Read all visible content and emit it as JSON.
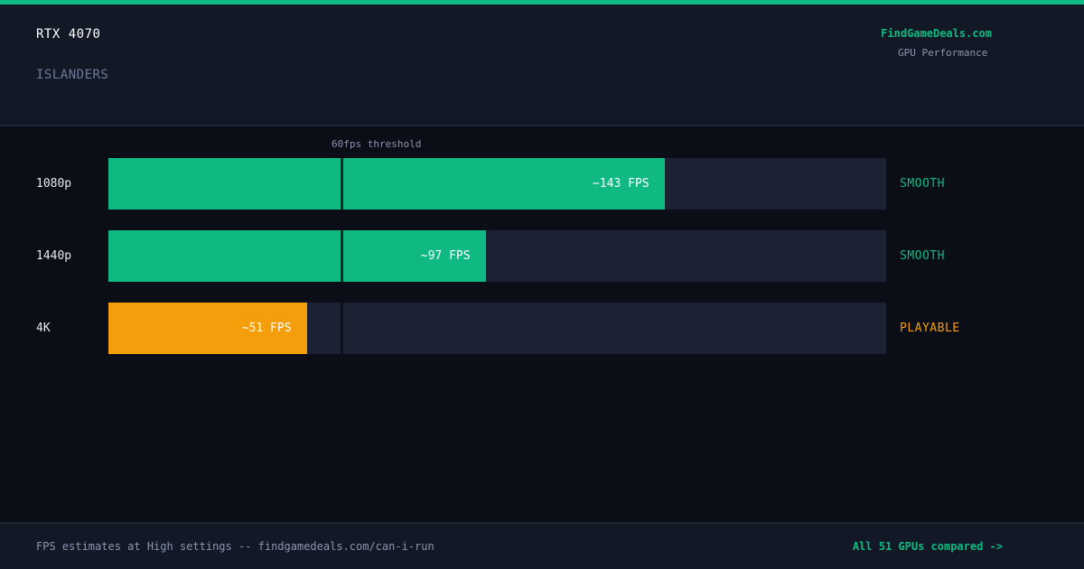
{
  "header": {
    "gpu": "RTX 4070",
    "game": "ISLANDERS",
    "brand": "FindGameDeals.com",
    "brand_subtitle": "GPU Performance"
  },
  "colors": {
    "smooth": "#10b981",
    "playable": "#f59e0b",
    "track": "#1b2233"
  },
  "chart_data": {
    "type": "bar",
    "orientation": "horizontal",
    "categories": [
      "1080p",
      "1440p",
      "4K"
    ],
    "values": [
      143,
      97,
      51
    ],
    "value_labels": [
      "~143 FPS",
      "~97 FPS",
      "~51 FPS"
    ],
    "statuses": [
      "SMOOTH",
      "SMOOTH",
      "PLAYABLE"
    ],
    "xlim": [
      0,
      200
    ],
    "threshold": {
      "value": 60,
      "label": "60fps threshold"
    }
  },
  "footer": {
    "note": "FPS estimates at High settings -- findgamedeals.com/can-i-run",
    "link": "All 51 GPUs compared ->"
  }
}
